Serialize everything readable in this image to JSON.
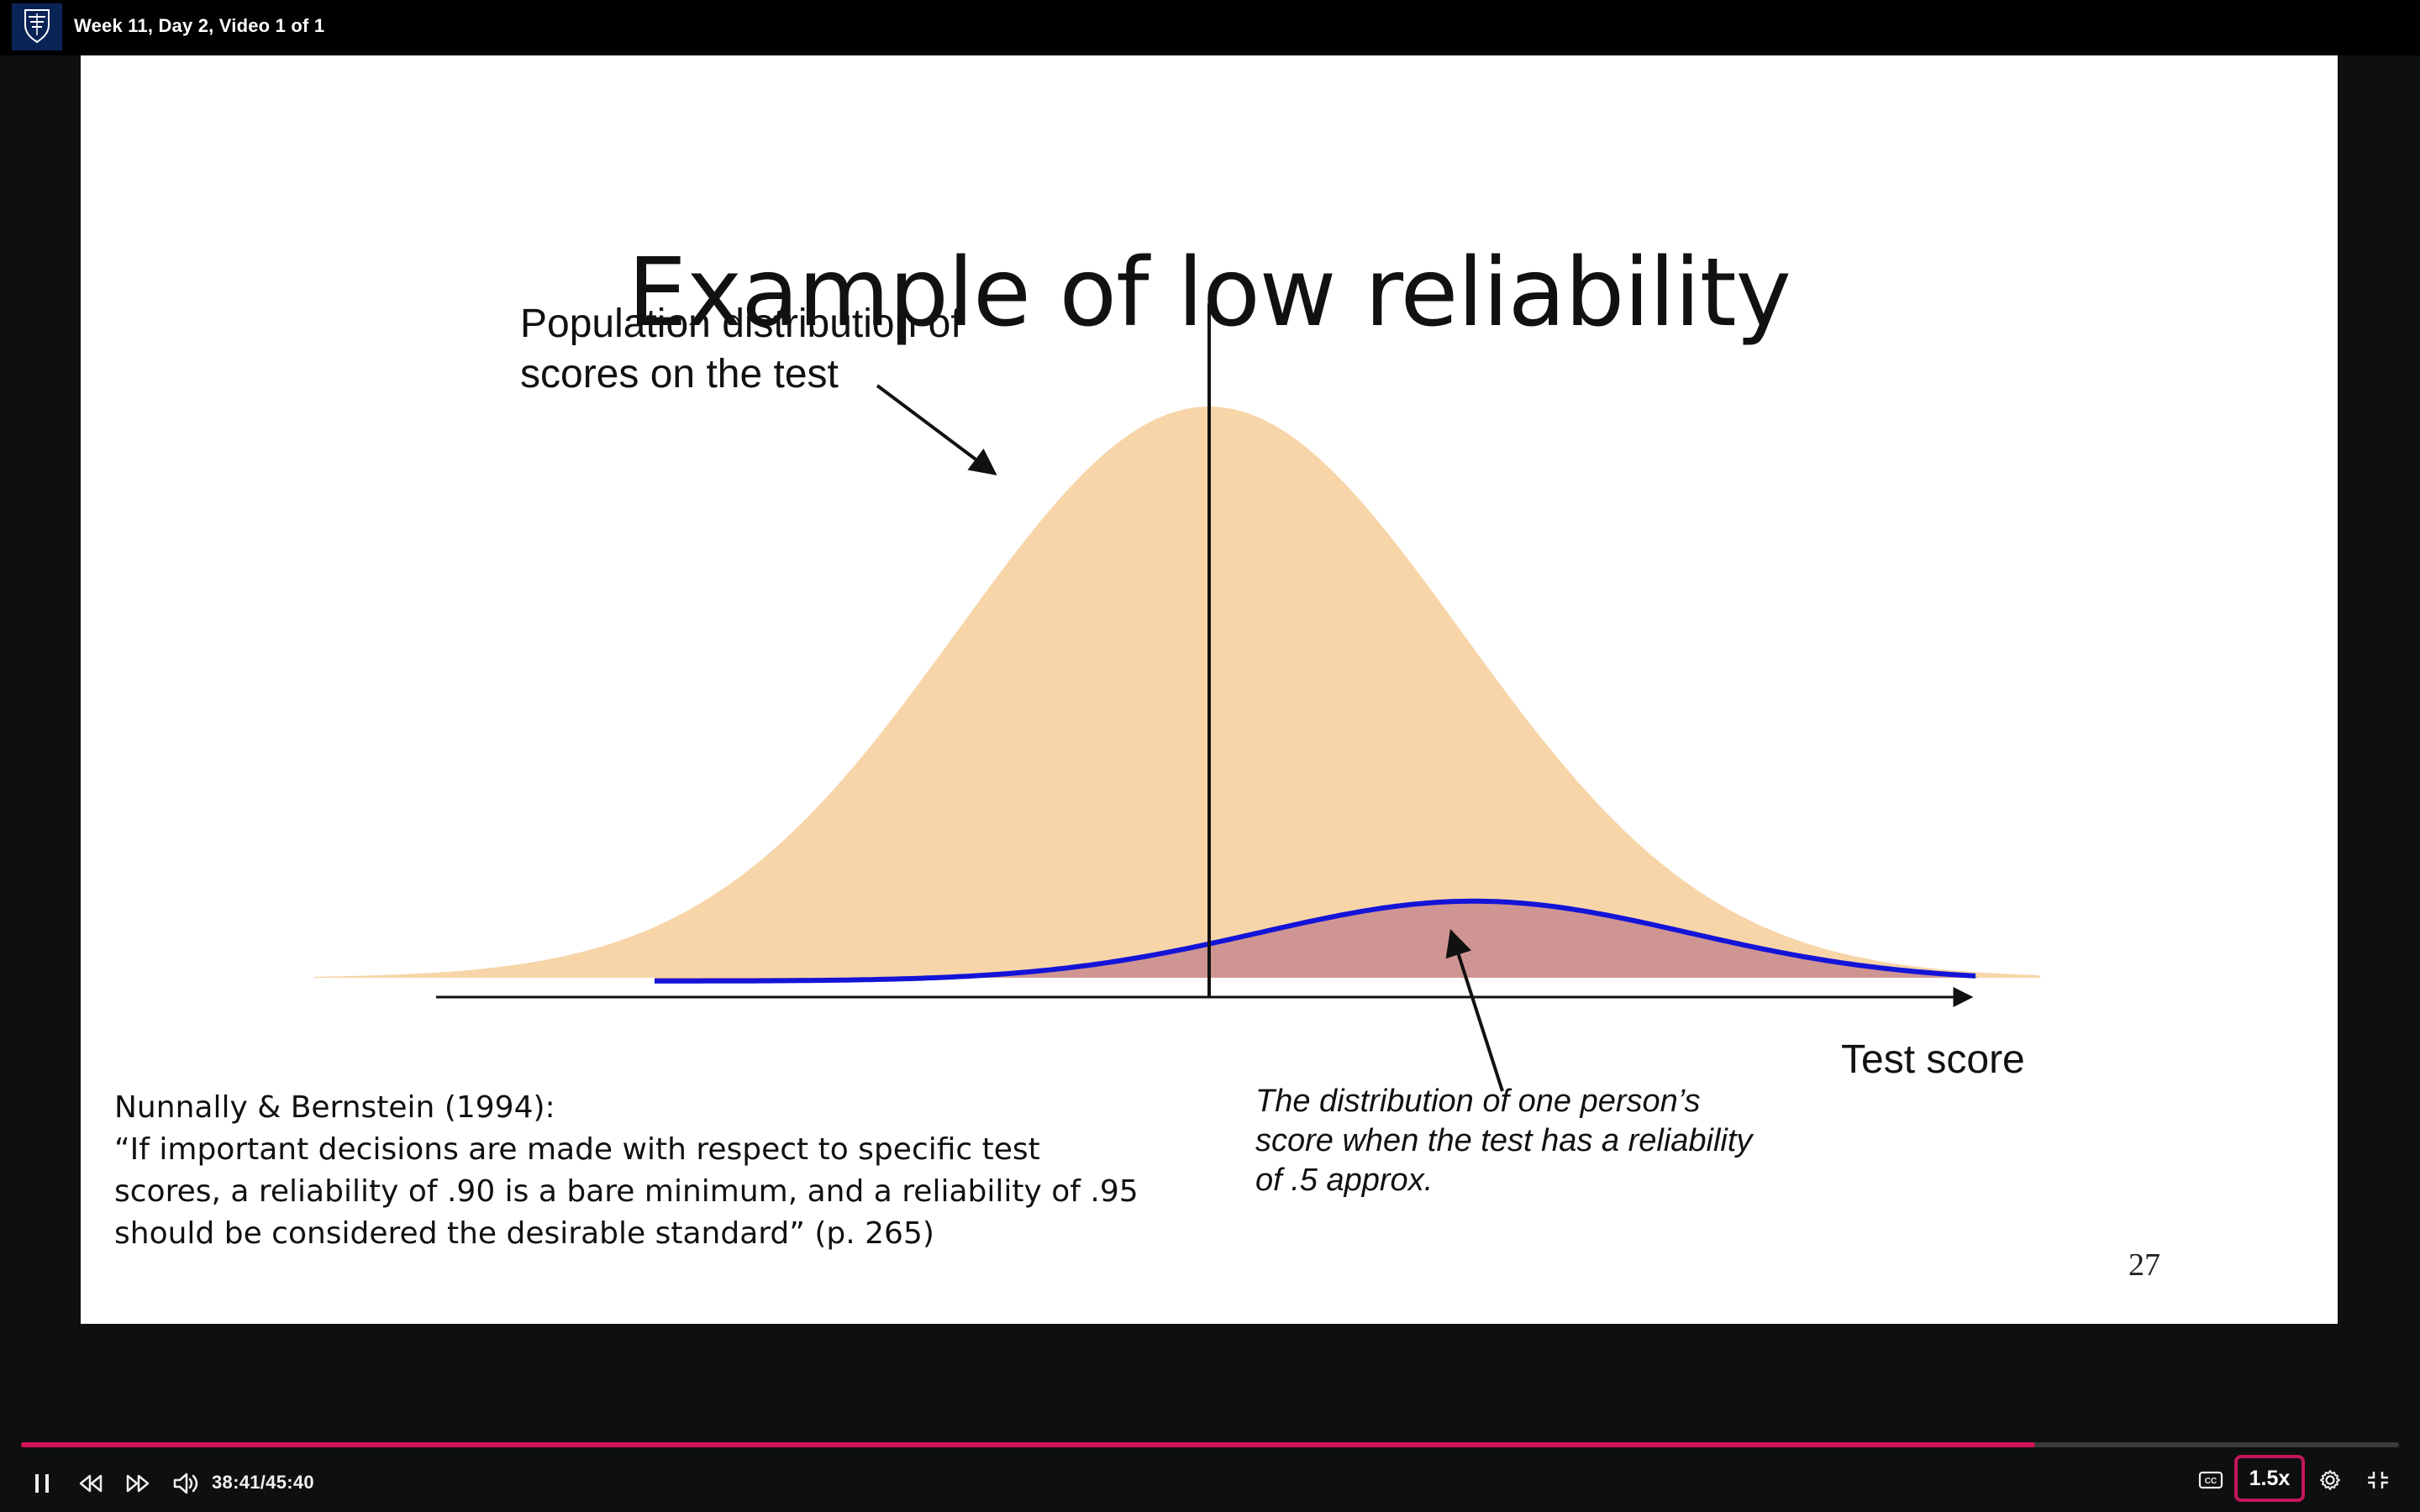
{
  "header": {
    "title": "Week 11, Day 2, Video 1 of 1",
    "logo_icon": "university-of-melbourne-logo"
  },
  "slide": {
    "title": "Example of low reliability",
    "population_label_line1": "Population distribution of",
    "population_label_line2": "scores on the test",
    "axis_label": "Test score",
    "person_label_line1": "The distribution of one person’s",
    "person_label_line2": "score when the test has a reliability",
    "person_label_line3": "of .5 approx.",
    "quote_line1": "Nunnally & Bernstein (1994):",
    "quote_line2": "“If important decisions are made with respect to specific test",
    "quote_line3": "scores, a reliability of .90 is a bare minimum, and a reliability of .95",
    "quote_line4": "should be considered the desirable standard” (p. 265)",
    "page_number": "27",
    "colors": {
      "population_fill": "#f7d5a8",
      "person_fill": "#cf9593",
      "person_curve": "#1414d8"
    },
    "population_curve": {
      "mean": 0,
      "sd": 1,
      "peak": 1.0
    },
    "person_curve": {
      "mean": 1.05,
      "sd": 0.85,
      "peak": 0.14
    }
  },
  "player": {
    "current_time": "38:41",
    "total_time": "45:40",
    "time_display": "38:41/45:40",
    "progress_fraction": 0.8471,
    "speed": "1.5x",
    "accent_color": "#d3145a",
    "icons": {
      "pause": "pause-icon",
      "rewind": "rewind-icon",
      "forward": "fast-forward-icon",
      "volume": "volume-icon",
      "captions": "closed-captions-icon",
      "settings": "gear-icon",
      "exit_fullscreen": "exit-fullscreen-icon"
    }
  }
}
